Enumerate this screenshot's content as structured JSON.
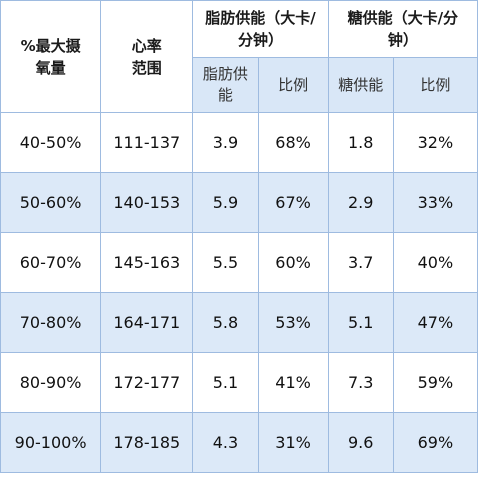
{
  "table": {
    "headers": {
      "vo2": "%最大摄氧量",
      "hr_range": "心率范围",
      "fat_group": "脂肪供能（大卡/分钟）",
      "sugar_group": "糖供能（大卡/分钟）",
      "fat_supply": "脂肪供能",
      "fat_ratio": "比例",
      "sugar_supply": "糖供能",
      "sugar_ratio": "比例"
    },
    "rows": [
      {
        "vo2": "40-50%",
        "hr": "111-137",
        "fat": "3.9",
        "fat_pct": "68%",
        "sugar": "1.8",
        "sugar_pct": "32%"
      },
      {
        "vo2": "50-60%",
        "hr": "140-153",
        "fat": "5.9",
        "fat_pct": "67%",
        "sugar": "2.9",
        "sugar_pct": "33%"
      },
      {
        "vo2": "60-70%",
        "hr": "145-163",
        "fat": "5.5",
        "fat_pct": "60%",
        "sugar": "3.7",
        "sugar_pct": "40%"
      },
      {
        "vo2": "70-80%",
        "hr": "164-171",
        "fat": "5.8",
        "fat_pct": "53%",
        "sugar": "5.1",
        "sugar_pct": "47%"
      },
      {
        "vo2": "80-90%",
        "hr": "172-177",
        "fat": "5.1",
        "fat_pct": "41%",
        "sugar": "7.3",
        "sugar_pct": "59%"
      },
      {
        "vo2": "90-100%",
        "hr": "178-185",
        "fat": "4.3",
        "fat_pct": "31%",
        "sugar": "9.6",
        "sugar_pct": "69%"
      }
    ]
  },
  "colors": {
    "border": "#9ebbe0",
    "stripe": "#dce9f8",
    "subheader": "#d9e7f7"
  }
}
